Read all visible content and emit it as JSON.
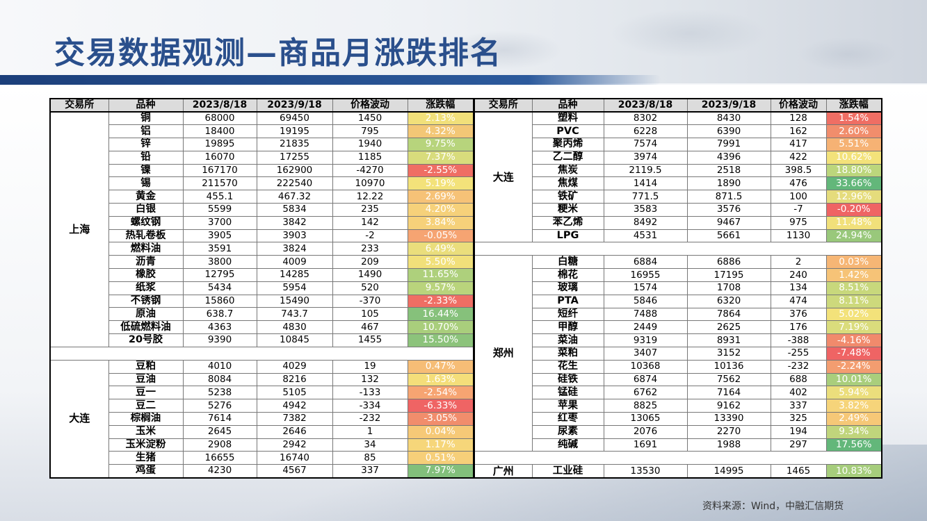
{
  "title": "交易数据观测—商品月涨跌排名",
  "source": "资料来源：Wind，中融汇信期货",
  "headers": [
    "交易所",
    "品种",
    "2023/8/18",
    "2023/9/18",
    "价格波动",
    "涨跌幅"
  ],
  "left": [
    {
      "exchange": "上海",
      "rows": [
        {
          "name": "铜",
          "a": "68000",
          "b": "69450",
          "c": "1450",
          "pct": "2.13%",
          "color": "#f1e07a"
        },
        {
          "name": "铝",
          "a": "18400",
          "b": "19195",
          "c": "795",
          "pct": "4.32%",
          "color": "#f3c776"
        },
        {
          "name": "锌",
          "a": "19895",
          "b": "21835",
          "c": "1940",
          "pct": "9.75%",
          "color": "#b7d47c"
        },
        {
          "name": "铅",
          "a": "16070",
          "b": "17255",
          "c": "1185",
          "pct": "7.37%",
          "color": "#d8dc7c"
        },
        {
          "name": "镍",
          "a": "167170",
          "b": "162900",
          "c": "-4270",
          "pct": "-2.55%",
          "color": "#ef6e64"
        },
        {
          "name": "锡",
          "a": "211570",
          "b": "222540",
          "c": "10970",
          "pct": "5.19%",
          "color": "#f3e27a"
        },
        {
          "name": "黄金",
          "a": "455.1",
          "b": "467.32",
          "c": "12.22",
          "pct": "2.69%",
          "color": "#f6c277"
        },
        {
          "name": "白银",
          "a": "5599",
          "b": "5834",
          "c": "235",
          "pct": "4.20%",
          "color": "#f6d17a"
        },
        {
          "name": "螺纹钢",
          "a": "3700",
          "b": "3842",
          "c": "142",
          "pct": "3.84%",
          "color": "#f6d17a"
        },
        {
          "name": "热轧卷板",
          "a": "3905",
          "b": "3903",
          "c": "-2",
          "pct": "-0.05%",
          "color": "#f6a472"
        },
        {
          "name": "燃料油",
          "a": "3591",
          "b": "3824",
          "c": "233",
          "pct": "6.49%",
          "color": "#eade7c"
        },
        {
          "name": "沥青",
          "a": "3800",
          "b": "4009",
          "c": "209",
          "pct": "5.50%",
          "color": "#f1e07a"
        },
        {
          "name": "橡胶",
          "a": "12795",
          "b": "14285",
          "c": "1490",
          "pct": "11.65%",
          "color": "#aed07c"
        },
        {
          "name": "纸浆",
          "a": "5434",
          "b": "5954",
          "c": "520",
          "pct": "9.57%",
          "color": "#b9d47c"
        },
        {
          "name": "不锈钢",
          "a": "15860",
          "b": "15490",
          "c": "-370",
          "pct": "-2.33%",
          "color": "#ef6e64"
        },
        {
          "name": "原油",
          "a": "638.7",
          "b": "743.7",
          "c": "105",
          "pct": "16.44%",
          "color": "#86c17b"
        },
        {
          "name": "低硫燃料油",
          "a": "4363",
          "b": "4830",
          "c": "467",
          "pct": "10.70%",
          "color": "#a9ce7c"
        },
        {
          "name": "20号胶",
          "a": "9390",
          "b": "10845",
          "c": "1455",
          "pct": "15.50%",
          "color": "#8cc37b"
        }
      ]
    },
    {
      "exchange": "大连",
      "rows": [
        {
          "name": "豆粕",
          "a": "4010",
          "b": "4029",
          "c": "19",
          "pct": "0.47%",
          "color": "#f6bd76"
        },
        {
          "name": "豆油",
          "a": "8084",
          "b": "8216",
          "c": "132",
          "pct": "1.63%",
          "color": "#f4de7a"
        },
        {
          "name": "豆一",
          "a": "5238",
          "b": "5105",
          "c": "-133",
          "pct": "-2.54%",
          "color": "#f6a472"
        },
        {
          "name": "豆二",
          "a": "5276",
          "b": "4942",
          "c": "-334",
          "pct": "-6.33%",
          "color": "#ef6464"
        },
        {
          "name": "棕榈油",
          "a": "7614",
          "b": "7382",
          "c": "-232",
          "pct": "-3.05%",
          "color": "#f18d6c"
        },
        {
          "name": "玉米",
          "a": "2645",
          "b": "2646",
          "c": "1",
          "pct": "0.04%",
          "color": "#f6c977"
        },
        {
          "name": "玉米淀粉",
          "a": "2908",
          "b": "2942",
          "c": "34",
          "pct": "1.17%",
          "color": "#f6d67a"
        },
        {
          "name": "生猪",
          "a": "16655",
          "b": "16740",
          "c": "85",
          "pct": "0.51%",
          "color": "#f6cf79"
        },
        {
          "name": "鸡蛋",
          "a": "4230",
          "b": "4567",
          "c": "337",
          "pct": "7.97%",
          "color": "#82bf7b"
        }
      ]
    }
  ],
  "right": [
    {
      "exchange": "大连",
      "rows": [
        {
          "name": "塑料",
          "a": "8302",
          "b": "8430",
          "c": "128",
          "pct": "1.54%",
          "color": "#ef6e64"
        },
        {
          "name": "PVC",
          "a": "6228",
          "b": "6390",
          "c": "162",
          "pct": "2.60%",
          "color": "#f18d6c"
        },
        {
          "name": "聚丙烯",
          "a": "7574",
          "b": "7991",
          "c": "417",
          "pct": "5.51%",
          "color": "#f6b274"
        },
        {
          "name": "乙二醇",
          "a": "3974",
          "b": "4396",
          "c": "422",
          "pct": "10.62%",
          "color": "#f3e27a"
        },
        {
          "name": "焦炭",
          "a": "2119.5",
          "b": "2518",
          "c": "398.5",
          "pct": "18.80%",
          "color": "#bcd67c"
        },
        {
          "name": "焦煤",
          "a": "1414",
          "b": "1890",
          "c": "476",
          "pct": "33.66%",
          "color": "#63b77a"
        },
        {
          "name": "铁矿",
          "a": "771.5",
          "b": "871.5",
          "c": "100",
          "pct": "12.96%",
          "color": "#e5dc7c"
        },
        {
          "name": "粳米",
          "a": "3583",
          "b": "3576",
          "c": "-7",
          "pct": "-0.20%",
          "color": "#ef6464"
        },
        {
          "name": "苯乙烯",
          "a": "8492",
          "b": "9467",
          "c": "975",
          "pct": "11.48%",
          "color": "#f1e07a"
        },
        {
          "name": "LPG",
          "a": "4531",
          "b": "5661",
          "c": "1130",
          "pct": "24.94%",
          "color": "#99c87b"
        }
      ]
    },
    {
      "exchange": "郑州",
      "rows": [
        {
          "name": "白糖",
          "a": "6884",
          "b": "6886",
          "c": "2",
          "pct": "0.03%",
          "color": "#f6b675"
        },
        {
          "name": "棉花",
          "a": "16955",
          "b": "17195",
          "c": "240",
          "pct": "1.42%",
          "color": "#f6c377"
        },
        {
          "name": "玻璃",
          "a": "1574",
          "b": "1708",
          "c": "134",
          "pct": "8.51%",
          "color": "#c8d87c"
        },
        {
          "name": "PTA",
          "a": "5846",
          "b": "6320",
          "c": "474",
          "pct": "8.11%",
          "color": "#cdd97c"
        },
        {
          "name": "短纤",
          "a": "7488",
          "b": "7864",
          "c": "376",
          "pct": "5.02%",
          "color": "#f3e27a"
        },
        {
          "name": "甲醇",
          "a": "2449",
          "b": "2625",
          "c": "176",
          "pct": "7.19%",
          "color": "#dadc7c"
        },
        {
          "name": "菜油",
          "a": "9319",
          "b": "8931",
          "c": "-388",
          "pct": "-4.16%",
          "color": "#f18a6c"
        },
        {
          "name": "菜粕",
          "a": "3407",
          "b": "3152",
          "c": "-255",
          "pct": "-7.48%",
          "color": "#ef6464"
        },
        {
          "name": "花生",
          "a": "10368",
          "b": "10136",
          "c": "-232",
          "pct": "-2.24%",
          "color": "#f39d70"
        },
        {
          "name": "硅铁",
          "a": "6874",
          "b": "7562",
          "c": "688",
          "pct": "10.01%",
          "color": "#a9ce7c"
        },
        {
          "name": "锰硅",
          "a": "6762",
          "b": "7164",
          "c": "402",
          "pct": "5.94%",
          "color": "#ebde7c"
        },
        {
          "name": "苹果",
          "a": "8825",
          "b": "9162",
          "c": "337",
          "pct": "3.82%",
          "color": "#f6d47a"
        },
        {
          "name": "红枣",
          "a": "13065",
          "b": "13390",
          "c": "325",
          "pct": "2.49%",
          "color": "#f6c877"
        },
        {
          "name": "尿素",
          "a": "2076",
          "b": "2270",
          "c": "194",
          "pct": "9.34%",
          "color": "#c0d57c"
        },
        {
          "name": "纯碱",
          "a": "1691",
          "b": "1988",
          "c": "297",
          "pct": "17.56%",
          "color": "#63b77a"
        }
      ]
    },
    {
      "exchange": "广州",
      "rows": [
        {
          "name": "工业硅",
          "a": "13530",
          "b": "14995",
          "c": "1465",
          "pct": "10.83%",
          "color": "#a6cd7c"
        }
      ]
    }
  ]
}
